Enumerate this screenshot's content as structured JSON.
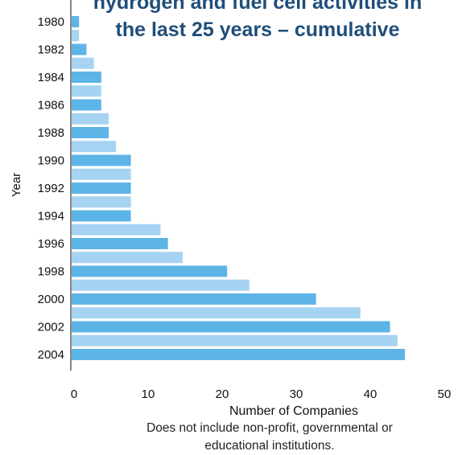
{
  "chart_data": {
    "type": "bar",
    "orientation": "horizontal",
    "title_lines": [
      "hydrogen and fuel cell activities in",
      "the last 25 years – cumulative"
    ],
    "xlabel": "Number of Companies",
    "ylabel": "Year",
    "xlim": [
      0,
      50
    ],
    "x_ticks": [
      "0",
      "10",
      "20",
      "30",
      "40",
      "50"
    ],
    "y_tick_labels": [
      "1980",
      "1982",
      "1984",
      "1986",
      "1988",
      "1990",
      "1992",
      "1994",
      "1996",
      "1998",
      "2000",
      "2002",
      "2004"
    ],
    "categories": [
      "1980",
      "1981",
      "1982",
      "1983",
      "1984",
      "1985",
      "1986",
      "1987",
      "1988",
      "1989",
      "1990",
      "1991",
      "1992",
      "1993",
      "1994",
      "1995",
      "1996",
      "1997",
      "1998",
      "1999",
      "2000",
      "2001",
      "2002",
      "2003",
      "2004"
    ],
    "values": [
      1,
      1,
      2,
      3,
      4,
      4,
      4,
      5,
      5,
      6,
      8,
      8,
      8,
      8,
      8,
      12,
      13,
      15,
      21,
      24,
      33,
      39,
      43,
      44,
      45
    ],
    "colors": {
      "even_year": "#5db4e6",
      "odd_year": "#a6d3f2"
    },
    "grid": false,
    "legend": "none",
    "note": [
      "Does not include non-profit, governmental or",
      "educational institutions."
    ]
  }
}
